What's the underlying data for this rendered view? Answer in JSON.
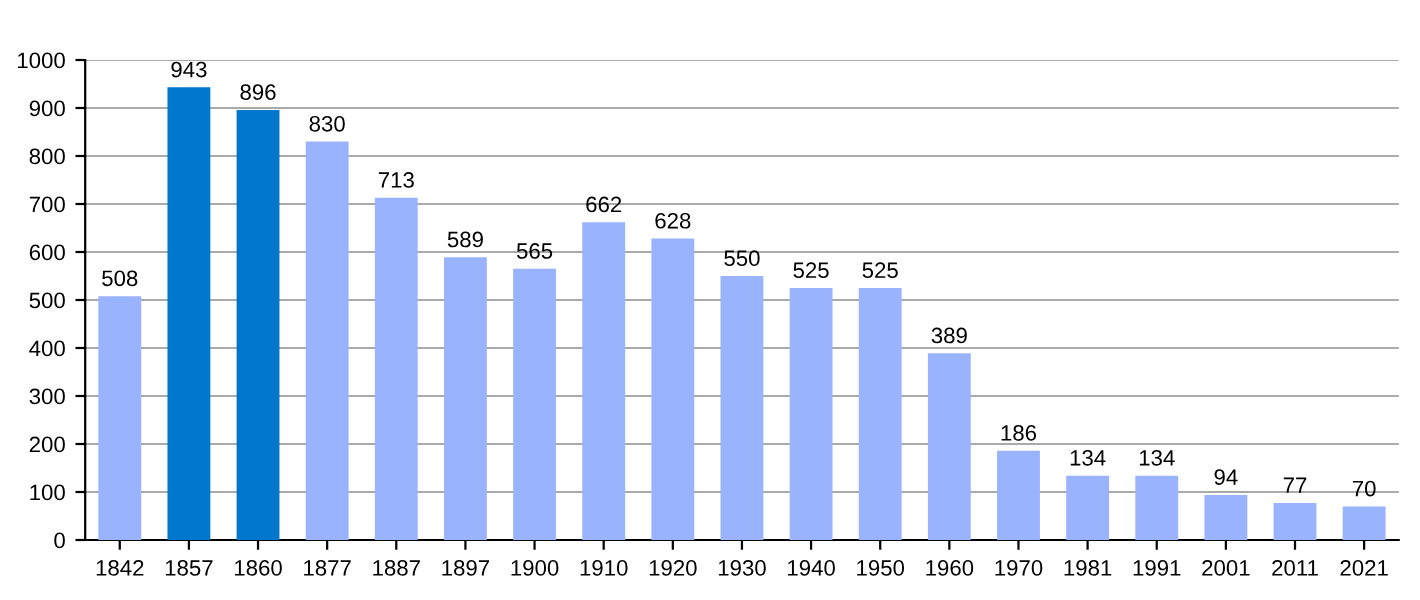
{
  "chart_data": {
    "type": "bar",
    "categories": [
      "1842",
      "1857",
      "1860",
      "1877",
      "1887",
      "1897",
      "1900",
      "1910",
      "1920",
      "1930",
      "1940",
      "1950",
      "1960",
      "1970",
      "1981",
      "1991",
      "2001",
      "2011",
      "2021"
    ],
    "values": [
      508,
      943,
      896,
      830,
      713,
      589,
      565,
      662,
      628,
      550,
      525,
      525,
      389,
      186,
      134,
      134,
      94,
      77,
      70
    ],
    "colors": [
      "#99b3ff",
      "#0077cc",
      "#0077cc",
      "#99b3ff",
      "#99b3ff",
      "#99b3ff",
      "#99b3ff",
      "#99b3ff",
      "#99b3ff",
      "#99b3ff",
      "#99b3ff",
      "#99b3ff",
      "#99b3ff",
      "#99b3ff",
      "#99b3ff",
      "#99b3ff",
      "#99b3ff",
      "#99b3ff",
      "#99b3ff"
    ],
    "ylim": [
      0,
      1000
    ],
    "yticks": [
      0,
      100,
      200,
      300,
      400,
      500,
      600,
      700,
      800,
      900,
      1000
    ],
    "grid": "y",
    "data_labels": true,
    "legend": false
  }
}
